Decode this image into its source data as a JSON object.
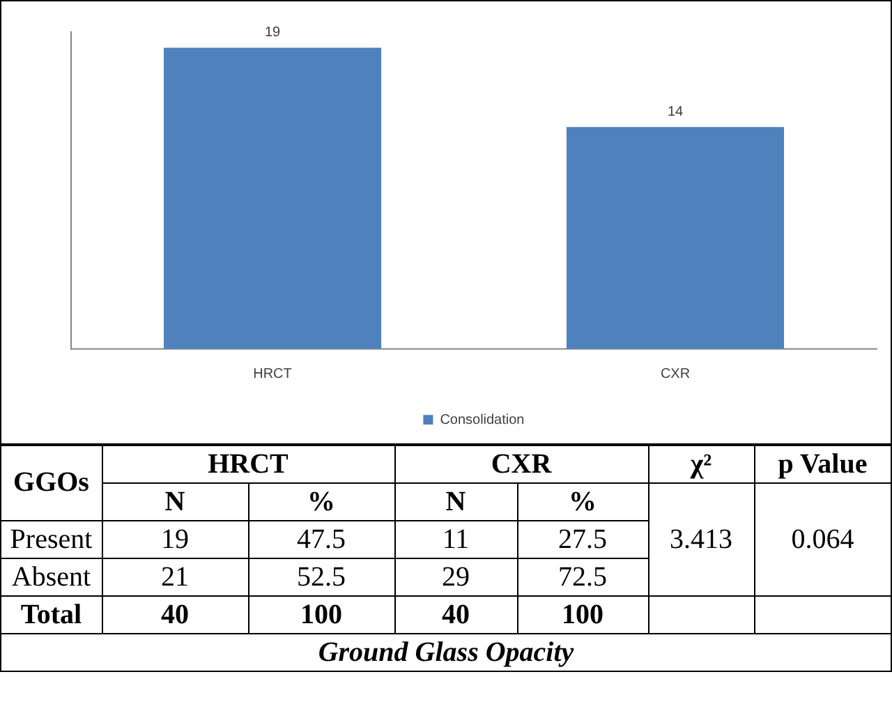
{
  "chart_data": [
    {
      "type": "bar",
      "categories": [
        "HRCT",
        "CXR"
      ],
      "series": [
        {
          "name": "Consolidation",
          "color": "#4f81bd",
          "values": [
            19,
            14
          ]
        }
      ],
      "data_labels": true,
      "legend": "bottom",
      "grid": false,
      "tick_labels": "x"
    },
    {
      "type": "other",
      "title": "Ground Glass Opacity",
      "annotations": [
        "GGOs",
        "HRCT",
        "CXR",
        "χ²",
        "p Value",
        "N",
        "%",
        "N",
        "%",
        "3.413",
        "0.064",
        "Present",
        "19",
        "47.5",
        "11",
        "27.5",
        "Absent",
        "21",
        "52.5",
        "29",
        "72.5",
        "Total",
        "40",
        "100",
        "40",
        "100"
      ]
    }
  ]
}
